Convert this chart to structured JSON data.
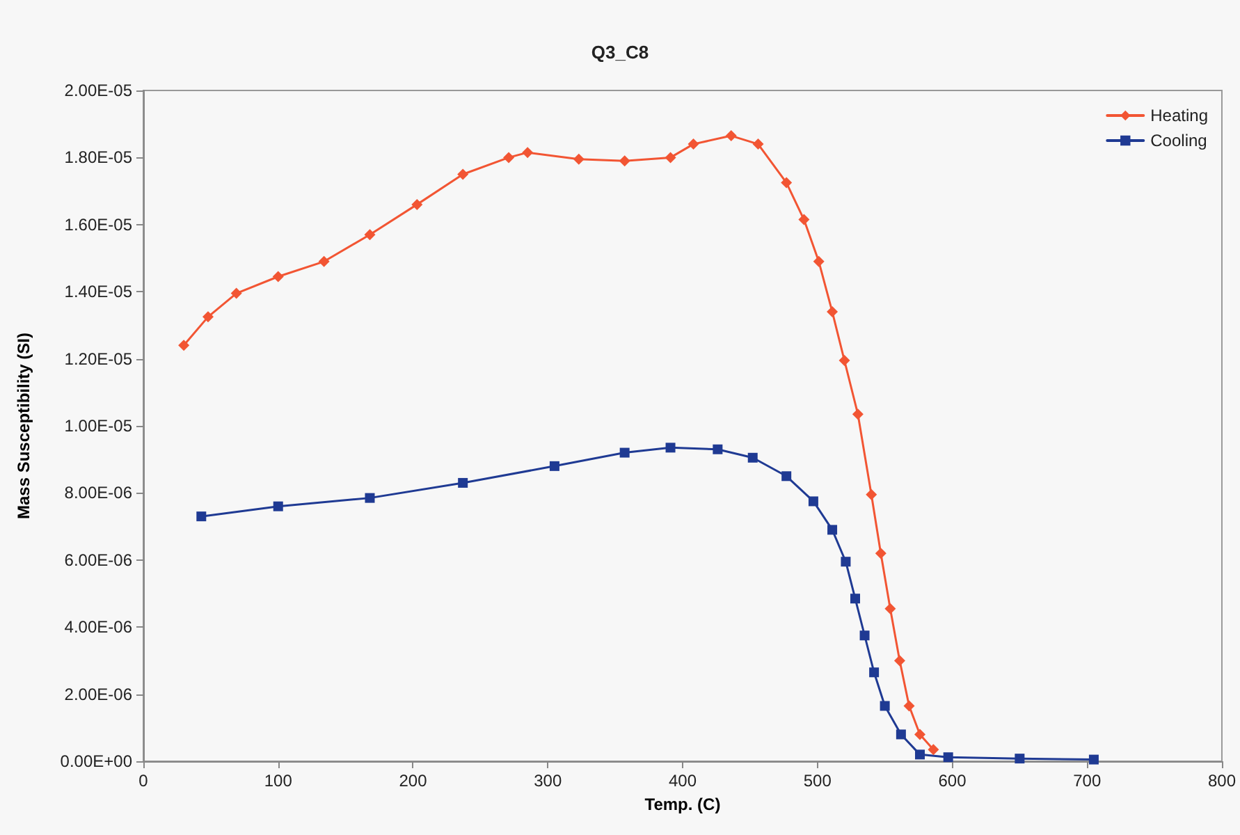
{
  "chart_data": {
    "type": "line",
    "title": "Q3_C8",
    "xlabel": "Temp. (C)",
    "ylabel": "Mass Susceptibility (SI)",
    "xlim": [
      0,
      800
    ],
    "xticks": [
      0,
      100,
      200,
      300,
      400,
      500,
      600,
      700,
      800
    ],
    "ylim": [
      0,
      2e-05
    ],
    "yticks": [
      {
        "value": 0,
        "label": "0.00E+00"
      },
      {
        "value": 2e-06,
        "label": "2.00E-06"
      },
      {
        "value": 4e-06,
        "label": "4.00E-06"
      },
      {
        "value": 6e-06,
        "label": "6.00E-06"
      },
      {
        "value": 8e-06,
        "label": "8.00E-06"
      },
      {
        "value": 1e-05,
        "label": "1.00E-05"
      },
      {
        "value": 1.2e-05,
        "label": "1.20E-05"
      },
      {
        "value": 1.4e-05,
        "label": "1.40E-05"
      },
      {
        "value": 1.6e-05,
        "label": "1.60E-05"
      },
      {
        "value": 1.8e-05,
        "label": "1.80E-05"
      },
      {
        "value": 2e-05,
        "label": "2.00E-05"
      }
    ],
    "grid": false,
    "legend": "top right",
    "line_style": "solid",
    "series": [
      {
        "name": "Heating",
        "color": "#f25533",
        "marker": "diamond",
        "x": [
          30,
          48,
          69,
          100,
          134,
          168,
          203,
          237,
          271,
          285,
          323,
          357,
          391,
          408,
          436,
          456,
          477,
          490,
          501,
          511,
          520,
          530,
          540,
          547,
          554,
          561,
          568,
          576,
          586
        ],
        "values": [
          1.24e-05,
          1.325e-05,
          1.395e-05,
          1.445e-05,
          1.49e-05,
          1.57e-05,
          1.66e-05,
          1.75e-05,
          1.8e-05,
          1.815e-05,
          1.795e-05,
          1.79e-05,
          1.8e-05,
          1.84e-05,
          1.865e-05,
          1.84e-05,
          1.725e-05,
          1.615e-05,
          1.49e-05,
          1.34e-05,
          1.195e-05,
          1.035e-05,
          7.95e-06,
          6.2e-06,
          4.55e-06,
          3e-06,
          1.65e-06,
          8e-07,
          3.5e-07
        ]
      },
      {
        "name": "Cooling",
        "color": "#1f3a93",
        "marker": "square",
        "x": [
          43,
          100,
          168,
          237,
          305,
          357,
          391,
          426,
          452,
          477,
          497,
          511,
          521,
          528,
          535,
          542,
          550,
          562,
          576,
          597,
          650,
          705
        ],
        "values": [
          7.3e-06,
          7.6e-06,
          7.85e-06,
          8.3e-06,
          8.8e-06,
          9.2e-06,
          9.35e-06,
          9.3e-06,
          9.05e-06,
          8.5e-06,
          7.75e-06,
          6.9e-06,
          5.95e-06,
          4.85e-06,
          3.75e-06,
          2.65e-06,
          1.65e-06,
          8e-07,
          2e-07,
          1.2e-07,
          8e-08,
          5e-08
        ]
      }
    ]
  }
}
